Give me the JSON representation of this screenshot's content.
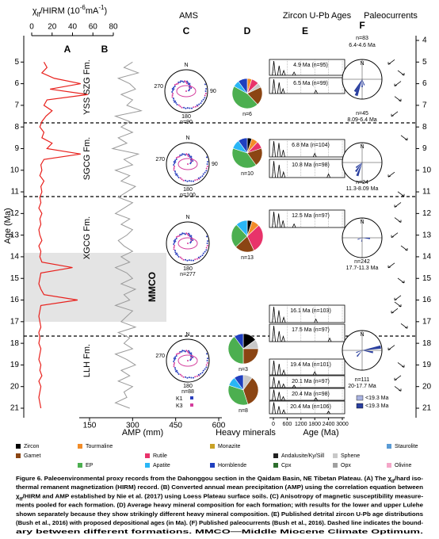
{
  "headers": {
    "ams": "AMS",
    "zircon": "Zircon U-Pb Ages",
    "paleocurrents": "Paleocurrents"
  },
  "age_axis": {
    "title": "Age (Ma)",
    "ylim": [
      4,
      21
    ],
    "left_ticks": [
      5,
      6,
      7,
      8,
      9,
      10,
      11,
      12,
      13,
      14,
      15,
      16,
      17,
      18,
      19,
      20,
      21
    ],
    "right_ticks": [
      4,
      5,
      6,
      7,
      8,
      9,
      10,
      11,
      12,
      13,
      14,
      15,
      16,
      17,
      18,
      19,
      20,
      21
    ]
  },
  "panel_a": {
    "label": "A",
    "title_parts": [
      "χ",
      "lf",
      "/HIRM (10",
      "-6",
      "mA",
      "-1",
      ")"
    ],
    "xlim": [
      0,
      80
    ],
    "xticks": [
      0,
      20,
      40,
      60,
      80
    ],
    "color": "#e8201c",
    "age": [
      5,
      5.25,
      5.5,
      5.75,
      6,
      6.25,
      6.5,
      6.75,
      7,
      7.25,
      7.5,
      7.75,
      8,
      8.25,
      8.5,
      8.75,
      9,
      9.25,
      9.5,
      9.75,
      10,
      10.25,
      10.5,
      10.75,
      11,
      11.25,
      11.5,
      11.75,
      12,
      12.25,
      12.5,
      12.75,
      13,
      13.25,
      13.5,
      13.75,
      14,
      14.25,
      14.5,
      14.75,
      15,
      15.25,
      15.5,
      15.75,
      16,
      16.25,
      16.5,
      16.75,
      17,
      17.25,
      17.5,
      17.75,
      18,
      18.25,
      18.5,
      18.75,
      19,
      19.25,
      19.5,
      19.75,
      20,
      20.25,
      20.5,
      20.75,
      21
    ],
    "values": [
      12,
      15,
      10,
      22,
      48,
      18,
      55,
      15,
      12,
      20,
      14,
      10,
      8,
      12,
      10,
      20,
      15,
      48,
      12,
      9,
      10,
      8,
      12,
      9,
      10,
      8,
      9,
      7,
      10,
      8,
      9,
      7,
      8,
      10,
      7,
      9,
      8,
      10,
      40,
      9,
      8,
      7,
      9,
      12,
      45,
      9,
      8,
      7,
      8,
      9,
      7,
      8,
      7,
      9,
      8,
      7,
      9,
      8,
      10,
      7,
      9,
      8,
      7,
      8,
      9
    ]
  },
  "panel_b": {
    "label": "B",
    "title": "AMP (mm)",
    "xlim": [
      150,
      600
    ],
    "xticks": [
      150,
      300,
      450,
      600
    ],
    "color": "#9a9a9a",
    "values": [
      300,
      270,
      320,
      250,
      290,
      310,
      260,
      300,
      280,
      330,
      240,
      290,
      260,
      300,
      250,
      280,
      230,
      320,
      270,
      300,
      240,
      290,
      260,
      310,
      280,
      250,
      300,
      270,
      240,
      290,
      260,
      300,
      280,
      250,
      270,
      300,
      260,
      290,
      240,
      280,
      300,
      260,
      310,
      270,
      290,
      240,
      300,
      280,
      260,
      310,
      250,
      290,
      270,
      300,
      240,
      280,
      310,
      260,
      290,
      250,
      300,
      270,
      280,
      240,
      290
    ]
  },
  "mmco": "MMCO",
  "formations": [
    "YSS SZG Fm.",
    "SGCG Fm.",
    "XGCG Fm.",
    "LLH Fm."
  ],
  "panel_c": {
    "label": "C",
    "stereonets": [
      {
        "north": "N",
        "east": "90",
        "west": "270",
        "south": "180",
        "n": "n=90"
      },
      {
        "north": "N",
        "east": "90",
        "west": "270",
        "south": "180",
        "n": "n=100"
      },
      {
        "north": "N",
        "south": "180",
        "n": "n=277"
      },
      {
        "north": "N",
        "west": "270",
        "south": "180",
        "n": "n=88"
      }
    ],
    "k1": "K1",
    "k3": "K3"
  },
  "panel_d": {
    "label": "D",
    "title": "Heavy minerals",
    "pies": [
      {
        "n": "n=6",
        "values": [
          0,
          5,
          8,
          0,
          0,
          5,
          0,
          20,
          45,
          7,
          10,
          0,
          0,
          0
        ]
      },
      {
        "n": "n=10",
        "values": [
          5,
          7,
          8,
          0,
          0,
          0,
          0,
          20,
          40,
          10,
          10,
          0,
          0,
          0
        ]
      },
      {
        "n": "n=13",
        "values": [
          5,
          8,
          30,
          0,
          0,
          0,
          0,
          20,
          25,
          12,
          0,
          0,
          0,
          0
        ]
      },
      {
        "n": "n=3",
        "values": [
          15,
          0,
          0,
          0,
          0,
          10,
          0,
          25,
          40,
          0,
          10,
          0,
          0,
          0
        ]
      },
      {
        "n": "n=8",
        "values": [
          0,
          0,
          0,
          0,
          0,
          10,
          0,
          35,
          35,
          10,
          10,
          0,
          0,
          0
        ]
      }
    ]
  },
  "panel_e": {
    "label": "E",
    "title": "Age (Ma)",
    "xlim": [
      0,
      3000
    ],
    "xticks": [
      0,
      600,
      1200,
      1800,
      2400,
      3000
    ],
    "histograms": [
      {
        "label": "4.9 Ma (n=95)",
        "peak_ages": [
          20,
          250,
          450,
          900
        ],
        "peak_heights": [
          0.9,
          0.6,
          0.3,
          0.2
        ]
      },
      {
        "label": "6.5 Ma (n=99)",
        "peak_ages": [
          20,
          250,
          420,
          1850
        ],
        "peak_heights": [
          0.9,
          0.7,
          0.3,
          0.2
        ]
      },
      {
        "label": "6.8 Ma (n=104)",
        "peak_ages": [
          20,
          240,
          430,
          1800
        ],
        "peak_heights": [
          0.9,
          0.8,
          0.4,
          0.2
        ]
      },
      {
        "label": "10.8 Ma (n=98)",
        "peak_ages": [
          20,
          250,
          440,
          2400
        ],
        "peak_heights": [
          0.9,
          0.7,
          0.3,
          0.2
        ]
      },
      {
        "label": "12.5 Ma (n=97)",
        "peak_ages": [
          20,
          230,
          420,
          900
        ],
        "peak_heights": [
          0.9,
          0.8,
          0.4,
          0.2
        ]
      },
      {
        "label": "16.1 Ma (n=103)",
        "peak_ages": [
          20,
          240,
          450,
          1850
        ],
        "peak_heights": [
          0.9,
          0.7,
          0.3,
          0.2
        ]
      },
      {
        "label": "17.5 Ma (n=97)",
        "peak_ages": [
          20,
          250,
          430,
          2450
        ],
        "peak_heights": [
          0.9,
          0.6,
          0.3,
          0.2
        ]
      },
      {
        "label": "19.4 Ma (n=101)",
        "peak_ages": [
          20,
          250,
          450,
          1800
        ],
        "peak_heights": [
          0.9,
          0.7,
          0.3,
          0.2
        ]
      },
      {
        "label": "20.1 Ma (n=97)",
        "peak_ages": [
          20,
          240,
          440,
          900
        ],
        "peak_heights": [
          0.9,
          0.6,
          0.3,
          0.2
        ]
      },
      {
        "label": "20.4 Ma (n=98)",
        "peak_ages": [
          20,
          250,
          430,
          1850
        ],
        "peak_heights": [
          0.9,
          0.7,
          0.3,
          0.2
        ]
      },
      {
        "label": "20.4 Ma (n=106)",
        "peak_ages": [
          20,
          240,
          450,
          2400
        ],
        "peak_heights": [
          0.9,
          0.6,
          0.3,
          0.2
        ]
      }
    ]
  },
  "panel_f": {
    "label": "F",
    "roses": [
      {
        "north": "N",
        "texts": [
          "n=83",
          "6.4-4.6 Ma",
          "n=45",
          "8.09-6.4 Ma"
        ]
      },
      {
        "north": "N",
        "texts": [
          "n=24",
          "11.3-8.09 Ma"
        ]
      },
      {
        "north": "N",
        "texts": [
          "n=242",
          "17.7-11.3 Ma"
        ]
      },
      {
        "north": "N",
        "texts": [
          "n=111",
          "20-17.7 Ma"
        ]
      }
    ],
    "legend": [
      {
        "name": "<19.3 Ma",
        "color": "#a9b3e0"
      },
      {
        "name": "<19.3 Ma",
        "color": "#2a3f9f"
      }
    ]
  },
  "mineral_legend": [
    {
      "name": "Zircon",
      "color": "#000000"
    },
    {
      "name": "Tourmaline",
      "color": "#f28c28"
    },
    {
      "name": "Rutile",
      "color": "#e8336a"
    },
    {
      "name": "Monazite",
      "color": "#c9a227"
    },
    {
      "name": "Andalusite/Ky/Sill",
      "color": "#222222"
    },
    {
      "name": "Sphene",
      "color": "#c8c8c8"
    },
    {
      "name": "Staurolite",
      "color": "#5a9bd5"
    },
    {
      "name": "Garnet",
      "color": "#8b4513"
    },
    {
      "name": "EP",
      "color": "#4caf50"
    },
    {
      "name": "Apatite",
      "color": "#29b6f6"
    },
    {
      "name": "Hornblende",
      "color": "#1f3fbf"
    },
    {
      "name": "Cpx",
      "color": "#2d6e2d"
    },
    {
      "name": "Opx",
      "color": "#a0a0a0"
    },
    {
      "name": "Olivine",
      "color": "#f4a6c8"
    }
  ],
  "caption": [
    [
      {
        "text": "Figure 6.",
        "bold": true
      },
      {
        "text": " Paleoenvironmental proxy records from the Dahonggou section in the Qaidam Basin, NE Tibetan Plateau. (A) The χ"
      },
      {
        "text": "lf",
        "sub": true
      },
      {
        "text": "/hard iso-"
      }
    ],
    [
      {
        "text": "thermal remanent magnetization (HIRM) record. (B) Converted annual mean precipitation (AMP) using the correlation equation between"
      }
    ],
    [
      {
        "text": "χ"
      },
      {
        "text": "lf",
        "sub": true
      },
      {
        "text": "/HIRM and AMP established by Nie et al. (2017) using Loess Plateau surface soils. (C) Anisotropy of magnetic susceptibility measure-"
      }
    ],
    [
      {
        "text": "ments pooled for each formation. (D) Average heavy mineral composition for each formation; with results for the lower and upper Lulehe"
      }
    ],
    [
      {
        "text": "shown separately because they show strikingly different heavy mineral composition. (E) Published detrital zircon U-Pb age distributions"
      }
    ],
    [
      {
        "text": "(Bush et al., 2016) with proposed depositional ages (in Ma). (F) Published paleocurrents (Bush et al., 2016). Dashed line indicates the bound-"
      }
    ],
    [
      {
        "text": "ary between different formations. MMCO—Middle Miocene Climate Optimum."
      }
    ]
  ]
}
